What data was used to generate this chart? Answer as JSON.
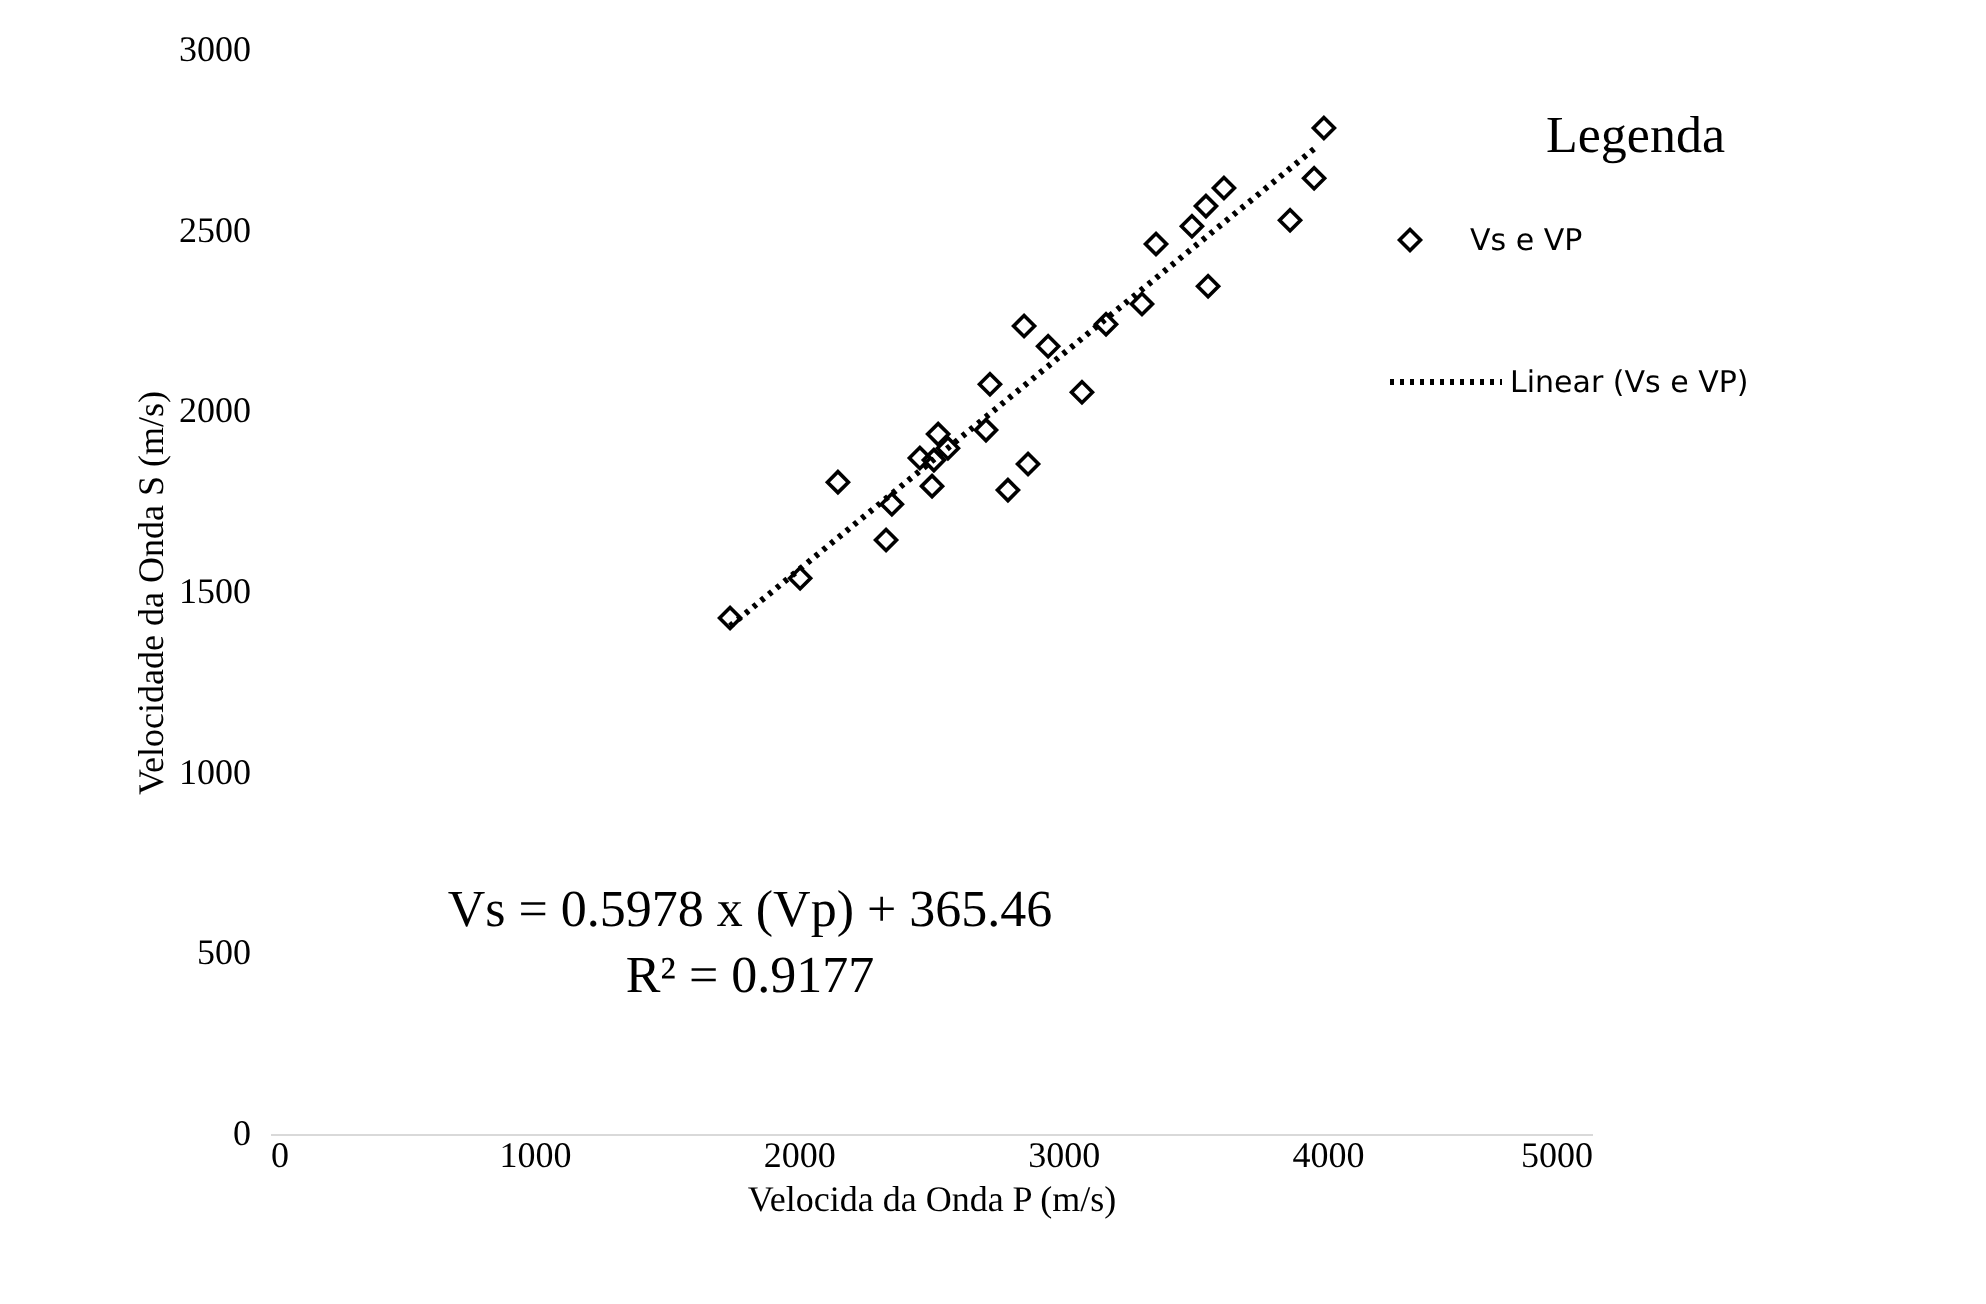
{
  "chart_data": {
    "type": "scatter",
    "xlabel": "Velocida da Onda P (m/s)",
    "ylabel": "Velocidade da Onda S (m/s)",
    "legend_title": "Legenda",
    "series": [
      {
        "name": "Vs e VP",
        "type": "scatter",
        "color": "#000000",
        "marker": "diamond",
        "x": [
          1740,
          2005,
          2148,
          2330,
          2352,
          2458,
          2504,
          2511,
          2527,
          2564,
          2708,
          2723,
          2791,
          2852,
          2867,
          2943,
          3071,
          3162,
          3298,
          3351,
          3487,
          3540,
          3548,
          3608,
          3858,
          3949,
          3986
        ],
        "values": [
          1428,
          1538,
          1804,
          1644,
          1743,
          1871,
          1793,
          1865,
          1937,
          1898,
          1948,
          2075,
          1782,
          2236,
          1854,
          2180,
          2053,
          2241,
          2297,
          2463,
          2512,
          2568,
          2346,
          2618,
          2529,
          2645,
          2784
        ]
      },
      {
        "name": "Linear (Vs e VP)",
        "type": "line",
        "color": "#000000",
        "line_style": "dotted",
        "marker": "none",
        "x": [
          1740,
          3950
        ],
        "values": [
          1406,
          2727
        ]
      }
    ],
    "xlim": [
      0,
      5000
    ],
    "xticks": [
      0,
      1000,
      2000,
      3000,
      4000,
      5000
    ],
    "ylim": [
      0,
      3000
    ],
    "yticks": [
      0,
      500,
      1000,
      1500,
      2000,
      2500,
      3000
    ],
    "grid": false,
    "legend": "right",
    "annotations": [
      "Vs = 0.5978 x (Vp) + 365.46",
      "R² = 0.9177"
    ]
  }
}
